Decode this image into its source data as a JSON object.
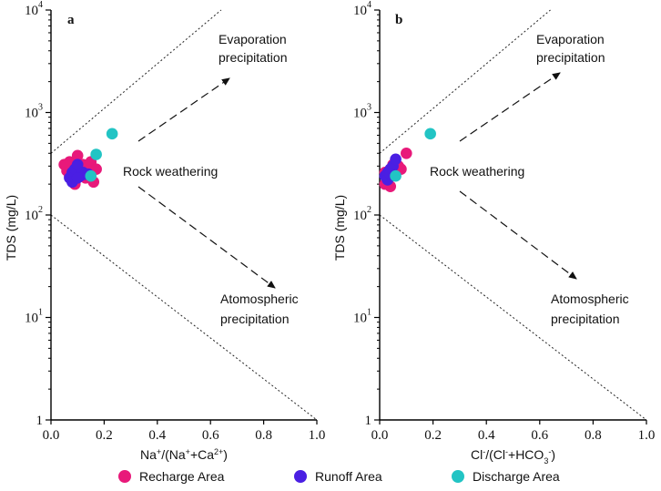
{
  "chart_data": {
    "type": "scatter",
    "legend": [
      {
        "name": "Recharge Area",
        "color": "#e8197a"
      },
      {
        "name": "Runoff Area",
        "color": "#4a1fe3"
      },
      {
        "name": "Discharge Area",
        "color": "#22c4c4"
      }
    ],
    "panels": [
      {
        "id": "a",
        "label": "a",
        "xlabel_html": "Na<tspan baseline-shift=\"super\" font-size=\"9\">+</tspan>/(Na<tspan baseline-shift=\"super\" font-size=\"9\">+</tspan>+Ca<tspan baseline-shift=\"super\" font-size=\"9\">2+</tspan>)",
        "ylabel": "TDS (mg/L)",
        "xlim": [
          0,
          1
        ],
        "ylim": [
          1,
          10000
        ],
        "yscale": "log",
        "xticks": [
          "0.0",
          "0.2",
          "0.4",
          "0.6",
          "0.8",
          "1.0"
        ],
        "yticks": [
          {
            "base": "1",
            "exp": ""
          },
          {
            "base": "10",
            "exp": "1"
          },
          {
            "base": "10",
            "exp": "2"
          },
          {
            "base": "10",
            "exp": "3"
          },
          {
            "base": "10",
            "exp": "4"
          }
        ],
        "annotations": {
          "evaporation_line1": "Evaporation",
          "evaporation_line2": "precipitation",
          "rock": "Rock weathering",
          "atmospheric_line1": "Atomospheric",
          "atmospheric_line2": "precipitation"
        },
        "series": [
          {
            "name": "Recharge Area",
            "points": [
              [
                0.05,
                310
              ],
              [
                0.06,
                270
              ],
              [
                0.07,
                330
              ],
              [
                0.08,
                250
              ],
              [
                0.09,
                220
              ],
              [
                0.09,
                200
              ],
              [
                0.1,
                380
              ],
              [
                0.11,
                280
              ],
              [
                0.12,
                310
              ],
              [
                0.13,
                230
              ],
              [
                0.08,
                290
              ],
              [
                0.06,
                300
              ],
              [
                0.14,
                270
              ],
              [
                0.15,
                330
              ],
              [
                0.16,
                210
              ],
              [
                0.17,
                280
              ],
              [
                0.07,
                240
              ],
              [
                0.1,
                260
              ]
            ]
          },
          {
            "name": "Runoff Area",
            "points": [
              [
                0.07,
                230
              ],
              [
                0.08,
                260
              ],
              [
                0.09,
                280
              ],
              [
                0.1,
                310
              ],
              [
                0.11,
                240
              ],
              [
                0.12,
                260
              ],
              [
                0.13,
                250
              ],
              [
                0.08,
                210
              ],
              [
                0.1,
                230
              ],
              [
                0.14,
                250
              ]
            ]
          },
          {
            "name": "Discharge Area",
            "points": [
              [
                0.23,
                620
              ],
              [
                0.17,
                390
              ],
              [
                0.15,
                240
              ]
            ]
          }
        ]
      },
      {
        "id": "b",
        "label": "b",
        "xlabel_html": "Cl<tspan baseline-shift=\"super\" font-size=\"9\">-</tspan>/(Cl<tspan baseline-shift=\"super\" font-size=\"9\">-</tspan>+HCO<tspan baseline-shift=\"sub\" font-size=\"9\">3</tspan><tspan baseline-shift=\"super\" font-size=\"9\">-</tspan>)",
        "ylabel": "TDS (mg/L)",
        "xlim": [
          0,
          1
        ],
        "ylim": [
          1,
          10000
        ],
        "yscale": "log",
        "xticks": [
          "0.0",
          "0.2",
          "0.4",
          "0.6",
          "0.8",
          "1.0"
        ],
        "yticks": [
          {
            "base": "1",
            "exp": ""
          },
          {
            "base": "10",
            "exp": "1"
          },
          {
            "base": "10",
            "exp": "2"
          },
          {
            "base": "10",
            "exp": "3"
          },
          {
            "base": "10",
            "exp": "4"
          }
        ],
        "annotations": {
          "evaporation_line1": "Evaporation",
          "evaporation_line2": "precipitation",
          "rock": "Rock weathering",
          "atmospheric_line1": "Atomospheric",
          "atmospheric_line2": "precipitation"
        },
        "series": [
          {
            "name": "Recharge Area",
            "points": [
              [
                0.02,
                200
              ],
              [
                0.03,
                230
              ],
              [
                0.02,
                260
              ],
              [
                0.04,
                280
              ],
              [
                0.05,
                310
              ],
              [
                0.06,
                270
              ],
              [
                0.07,
                300
              ],
              [
                0.08,
                280
              ],
              [
                0.1,
                400
              ],
              [
                0.03,
                220
              ],
              [
                0.05,
                250
              ],
              [
                0.04,
                190
              ]
            ]
          },
          {
            "name": "Runoff Area",
            "points": [
              [
                0.02,
                240
              ],
              [
                0.03,
                260
              ],
              [
                0.04,
                280
              ],
              [
                0.05,
                300
              ],
              [
                0.06,
                350
              ],
              [
                0.03,
                220
              ],
              [
                0.04,
                250
              ]
            ]
          },
          {
            "name": "Discharge Area",
            "points": [
              [
                0.19,
                620
              ],
              [
                0.06,
                240
              ]
            ]
          }
        ]
      }
    ]
  }
}
